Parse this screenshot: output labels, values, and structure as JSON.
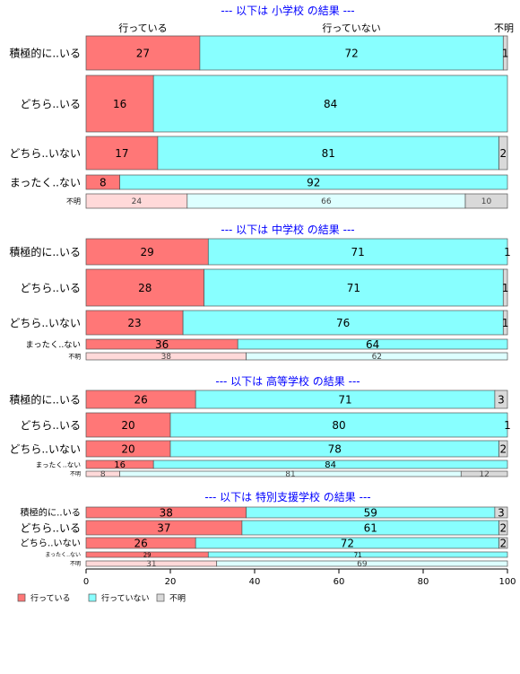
{
  "chart_data": {
    "type": "bar",
    "stacked": true,
    "orientation": "horizontal",
    "normalized_percent": true,
    "xlim": [
      0,
      100
    ],
    "xticks": [
      "0",
      "20",
      "40",
      "60",
      "80",
      "100"
    ],
    "categories": [
      "積極的に..いる",
      "どちら..いる",
      "どちら..いない",
      "まったく..ない",
      "不明"
    ],
    "column_headers": [
      "行っている",
      "行っていない",
      "不明"
    ],
    "legend": {
      "position": "bottom-left",
      "entries": [
        {
          "label": "行っている",
          "color": "#ff7777"
        },
        {
          "label": "行っていない",
          "color": "#88ffff"
        },
        {
          "label": "不明",
          "color": "#d9d9d9"
        }
      ]
    },
    "panels": [
      {
        "title": "--- 以下は 小学校 の結果 ---",
        "rows": [
          {
            "label": "積極的に..いる",
            "values": [
              27,
              72,
              1
            ]
          },
          {
            "label": "どちら..いる",
            "values": [
              16,
              84,
              0
            ]
          },
          {
            "label": "どちら..いない",
            "values": [
              17,
              81,
              2
            ]
          },
          {
            "label": "まったく..ない",
            "values": [
              8,
              92,
              0
            ]
          },
          {
            "label": "不明",
            "values": [
              24,
              66,
              10
            ]
          }
        ]
      },
      {
        "title": "--- 以下は 中学校 の結果 ---",
        "rows": [
          {
            "label": "積極的に..いる",
            "values": [
              29,
              71,
              1
            ]
          },
          {
            "label": "どちら..いる",
            "values": [
              28,
              71,
              1
            ]
          },
          {
            "label": "どちら..いない",
            "values": [
              23,
              76,
              1
            ]
          },
          {
            "label": "まったく..ない",
            "values": [
              36,
              64,
              0
            ]
          },
          {
            "label": "不明",
            "values": [
              38,
              62,
              0
            ]
          }
        ]
      },
      {
        "title": "--- 以下は 高等学校 の結果 ---",
        "rows": [
          {
            "label": "積極的に..いる",
            "values": [
              26,
              71,
              3
            ]
          },
          {
            "label": "どちら..いる",
            "values": [
              20,
              80,
              1
            ]
          },
          {
            "label": "どちら..いない",
            "values": [
              20,
              78,
              2
            ]
          },
          {
            "label": "まったく..ない",
            "values": [
              16,
              84,
              0
            ]
          },
          {
            "label": "不明",
            "values": [
              8,
              81,
              12
            ]
          }
        ]
      },
      {
        "title": "--- 以下は 特別支援学校 の結果 ---",
        "rows": [
          {
            "label": "積極的に..いる",
            "values": [
              38,
              59,
              3
            ]
          },
          {
            "label": "どちら..いる",
            "values": [
              37,
              61,
              2
            ]
          },
          {
            "label": "どちら..いない",
            "values": [
              26,
              72,
              2
            ]
          },
          {
            "label": "まったく..ない",
            "values": [
              29,
              71,
              0
            ]
          },
          {
            "label": "不明",
            "values": [
              31,
              69,
              0
            ]
          }
        ]
      }
    ],
    "colors": {
      "yes": "#ff7777",
      "no": "#88ffff",
      "unknown": "#d9d9d9",
      "yes_light": "#ffd9d9",
      "no_light": "#ddffff",
      "title": "#0000ff",
      "border": "#555555"
    }
  }
}
